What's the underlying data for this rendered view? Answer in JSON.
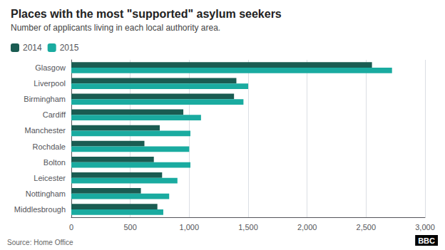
{
  "chart_data": {
    "type": "bar",
    "orientation": "horizontal",
    "title": "Places with the most \"supported\" asylum seekers",
    "subtitle": "Number of applicants living in each local authority area.",
    "source": "Source: Home Office",
    "annotations": [
      "BBC"
    ],
    "categories": [
      "Glasgow",
      "Liverpool",
      "Birmingham",
      "Cardiff",
      "Manchester",
      "Rochdale",
      "Bolton",
      "Leicester",
      "Nottingham",
      "Middlesbrough"
    ],
    "series": [
      {
        "name": "2014",
        "color": "#1a5c52",
        "values": [
          2550,
          1400,
          1380,
          950,
          750,
          620,
          700,
          770,
          590,
          730
        ]
      },
      {
        "name": "2015",
        "color": "#1aaba0",
        "values": [
          2720,
          1500,
          1460,
          1100,
          1010,
          1000,
          1010,
          900,
          830,
          780
        ]
      }
    ],
    "xlim": [
      0,
      3000
    ],
    "xticks": [
      0,
      500,
      {
        "value": 1000,
        "label": "1,000"
      },
      {
        "value": 1500,
        "label": "1,500"
      },
      {
        "value": 2000,
        "label": "2,000"
      },
      {
        "value": 2500,
        "label": "2,500"
      },
      {
        "value": 3000,
        "label": "3,000"
      }
    ],
    "grid": true,
    "legend": "upper left"
  }
}
